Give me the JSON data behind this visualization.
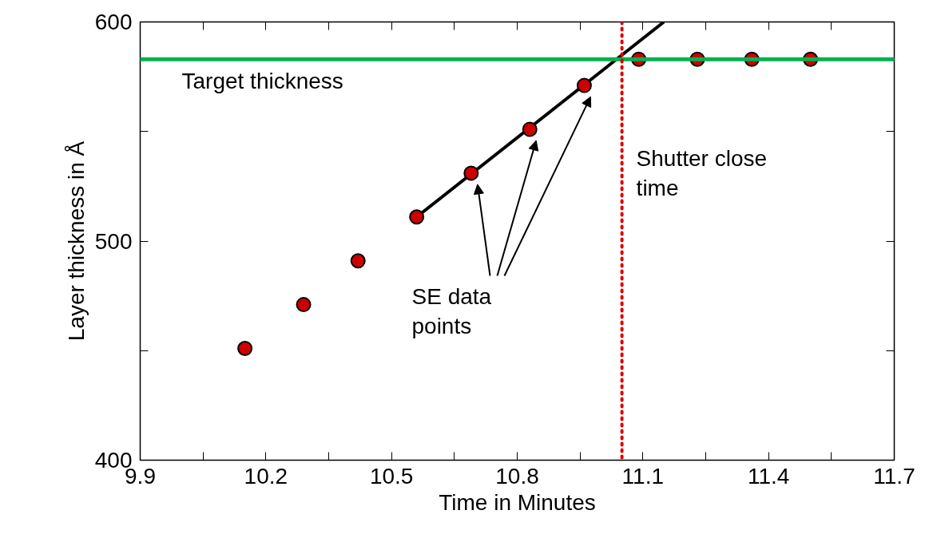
{
  "chart_data": {
    "type": "scatter",
    "xlabel": "Time in Minutes",
    "ylabel": "Layer thickness in Å",
    "xlim": [
      9.9,
      11.7
    ],
    "ylim": [
      400,
      600
    ],
    "xticks": [
      9.9,
      {
        "value": 10.05,
        "label": null
      },
      10.2,
      {
        "value": 10.35,
        "label": null
      },
      10.5,
      {
        "value": 10.65,
        "label": null
      },
      10.8,
      {
        "value": 10.95,
        "label": null
      },
      11.1,
      {
        "value": 11.25,
        "label": null
      },
      11.4,
      {
        "value": 11.55,
        "label": null
      },
      11.7
    ],
    "yticks": [
      400,
      {
        "value": 450,
        "label": null
      },
      500,
      {
        "value": 550,
        "label": null
      },
      600
    ],
    "grid": false,
    "marker": "circle",
    "series": [
      {
        "type": "line",
        "color": "#000000",
        "x": [
          10.56,
          11.15
        ],
        "values": [
          511,
          600
        ],
        "marker": "none"
      },
      {
        "color": "#cc0000",
        "x": [
          10.15,
          10.29,
          10.42,
          10.56,
          10.69,
          10.83,
          10.96,
          11.09,
          11.23,
          11.36,
          11.5
        ],
        "values": [
          451,
          471,
          491,
          511,
          531,
          551,
          571,
          583,
          583,
          583,
          583
        ]
      }
    ],
    "ref_lines": [
      {
        "axis": "y",
        "value": 583,
        "label": "Target thickness",
        "color": "#00b050",
        "line_style": "solid"
      },
      {
        "axis": "x",
        "value": 11.05,
        "label": "Shutter close\ntime",
        "color": "#dd0000",
        "line_style": "dotted"
      }
    ],
    "annotations": [
      "SE data\npoints"
    ]
  }
}
